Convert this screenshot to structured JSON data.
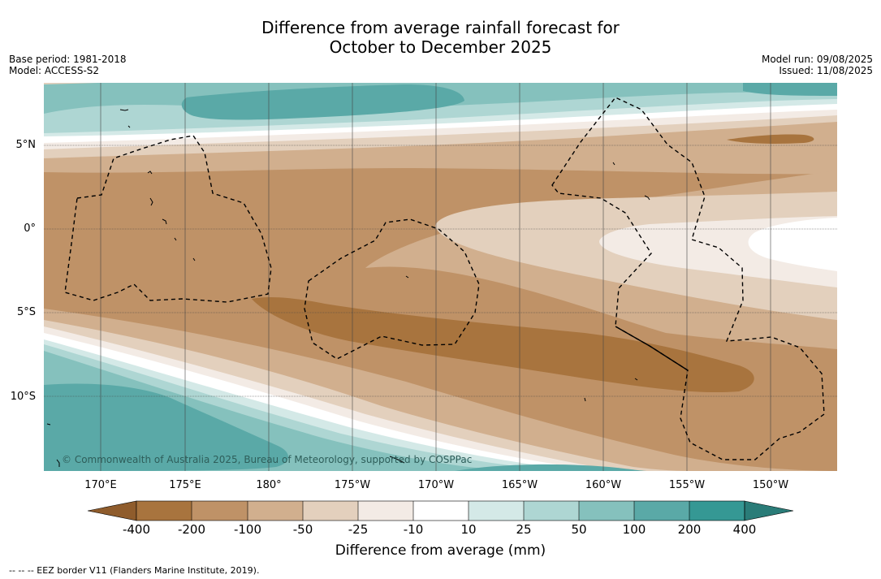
{
  "title": {
    "line1": "Difference from average rainfall forecast for",
    "line2": "October to December 2025"
  },
  "info": {
    "base_period": "Base period: 1981-2018",
    "model": "Model: ACCESS-S2",
    "model_run": "Model run: 09/08/2025",
    "issued": "Issued: 11/08/2025"
  },
  "map": {
    "copyright": "© Commonwealth of Australia 2025, Bureau of Meteorology, supported by COSPPac",
    "lat_labels": [
      "5°N",
      "0°",
      "5°S",
      "10°S"
    ],
    "lon_labels": [
      "170°E",
      "175°E",
      "180°",
      "175°W",
      "170°W",
      "165°W",
      "160°W",
      "155°W",
      "150°W"
    ]
  },
  "colorbar": {
    "ticks": [
      "-400",
      "-200",
      "-100",
      "-50",
      "-25",
      "-10",
      "10",
      "25",
      "50",
      "100",
      "200",
      "400"
    ],
    "colors": {
      "below_min": "#8f5c2c",
      "band_-400_-200": "#a8743e",
      "band_-200_-100": "#bf9267",
      "band_-100_-50": "#d1af8e",
      "band_-50_-25": "#e3d0bd",
      "band_-25_-10": "#f3ebe5",
      "band_-10_10": "#ffffff",
      "band_10_25": "#d4e9e7",
      "band_25_50": "#aed6d3",
      "band_50_100": "#85c1bd",
      "band_100_200": "#5aa9a7",
      "band_200_400": "#359894",
      "above_max": "#2a7c78"
    },
    "label": "Difference from average (mm)"
  },
  "footnote": "--  --  -- EEZ border V11 (Flanders Marine Institute, 2019)."
}
